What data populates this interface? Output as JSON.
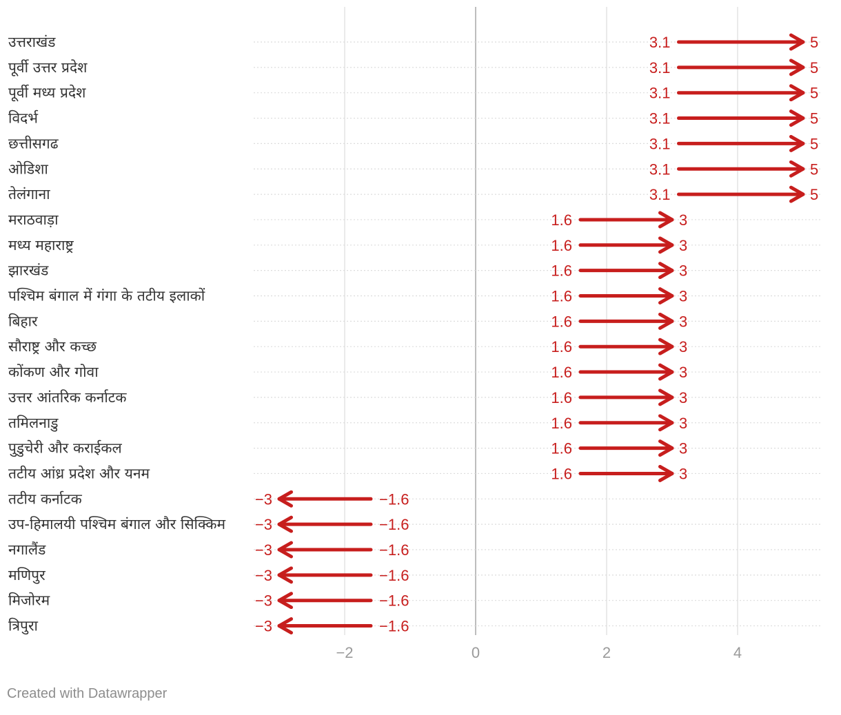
{
  "chart_data": {
    "type": "arrow",
    "title": "",
    "xlabel": "",
    "ylabel": "",
    "xlim": [
      -3.4,
      5.3
    ],
    "x_ticks": [
      -2,
      0,
      2,
      4
    ],
    "x_tick_labels": [
      "−2",
      "0",
      "2",
      "4"
    ],
    "grid": true,
    "rows": [
      {
        "label": "उत्तराखंड",
        "start": 3.1,
        "end": 5,
        "start_label": "3.1",
        "end_label": "5"
      },
      {
        "label": "पूर्वी उत्तर प्रदेश",
        "start": 3.1,
        "end": 5,
        "start_label": "3.1",
        "end_label": "5"
      },
      {
        "label": "पूर्वी मध्य प्रदेश",
        "start": 3.1,
        "end": 5,
        "start_label": "3.1",
        "end_label": "5"
      },
      {
        "label": "विदर्भ",
        "start": 3.1,
        "end": 5,
        "start_label": "3.1",
        "end_label": "5"
      },
      {
        "label": "छत्तीसगढ",
        "start": 3.1,
        "end": 5,
        "start_label": "3.1",
        "end_label": "5"
      },
      {
        "label": "ओडिशा",
        "start": 3.1,
        "end": 5,
        "start_label": "3.1",
        "end_label": "5"
      },
      {
        "label": "तेलंगाना",
        "start": 3.1,
        "end": 5,
        "start_label": "3.1",
        "end_label": "5"
      },
      {
        "label": "मराठवाड़ा",
        "start": 1.6,
        "end": 3,
        "start_label": "1.6",
        "end_label": "3"
      },
      {
        "label": "मध्य महाराष्ट्र",
        "start": 1.6,
        "end": 3,
        "start_label": "1.6",
        "end_label": "3"
      },
      {
        "label": "झारखंड",
        "start": 1.6,
        "end": 3,
        "start_label": "1.6",
        "end_label": "3"
      },
      {
        "label": "पश्चिम बंगाल में गंगा के तटीय इलाकों",
        "start": 1.6,
        "end": 3,
        "start_label": "1.6",
        "end_label": "3"
      },
      {
        "label": "बिहार",
        "start": 1.6,
        "end": 3,
        "start_label": "1.6",
        "end_label": "3"
      },
      {
        "label": "सौराष्ट्र और कच्छ",
        "start": 1.6,
        "end": 3,
        "start_label": "1.6",
        "end_label": "3"
      },
      {
        "label": "कोंकण और गोवा",
        "start": 1.6,
        "end": 3,
        "start_label": "1.6",
        "end_label": "3"
      },
      {
        "label": "उत्तर आंतरिक कर्नाटक",
        "start": 1.6,
        "end": 3,
        "start_label": "1.6",
        "end_label": "3"
      },
      {
        "label": "तमिलनाडु",
        "start": 1.6,
        "end": 3,
        "start_label": "1.6",
        "end_label": "3"
      },
      {
        "label": "पुडुचेरी और कराईकल",
        "start": 1.6,
        "end": 3,
        "start_label": "1.6",
        "end_label": "3"
      },
      {
        "label": "तटीय आंध्र प्रदेश और यनम",
        "start": 1.6,
        "end": 3,
        "start_label": "1.6",
        "end_label": "3"
      },
      {
        "label": "तटीय कर्नाटक",
        "start": -1.6,
        "end": -3,
        "start_label": "−1.6",
        "end_label": "−3"
      },
      {
        "label": "उप-हिमालयी पश्चिम बंगाल और सिक्किम",
        "start": -1.6,
        "end": -3,
        "start_label": "−1.6",
        "end_label": "−3"
      },
      {
        "label": "नगालैंड",
        "start": -1.6,
        "end": -3,
        "start_label": "−1.6",
        "end_label": "−3"
      },
      {
        "label": "मणिपुर",
        "start": -1.6,
        "end": -3,
        "start_label": "−1.6",
        "end_label": "−3"
      },
      {
        "label": "मिजोरम",
        "start": -1.6,
        "end": -3,
        "start_label": "−1.6",
        "end_label": "−3"
      },
      {
        "label": "त्रिपुरा",
        "start": -1.6,
        "end": -3,
        "start_label": "−1.6",
        "end_label": "−3"
      }
    ],
    "colors": {
      "arrow": "#c71e1d",
      "gridline": "#e3e3e3",
      "zero_line": "#bdbdbd",
      "row_divider": "#dcdcdc",
      "label_text": "#333333",
      "tick_text": "#9a9a9a"
    }
  },
  "footer": {
    "credit": "Created with Datawrapper"
  }
}
